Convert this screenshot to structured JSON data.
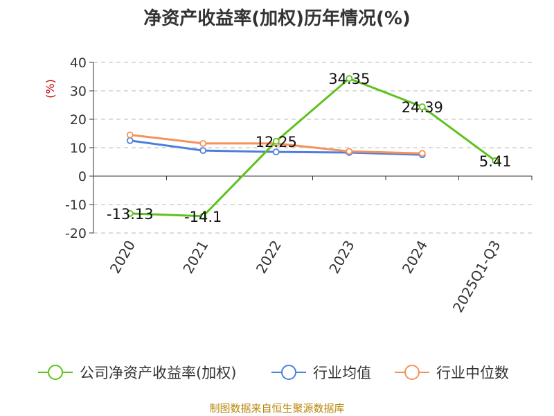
{
  "chart_data": {
    "type": "line",
    "title": "净资产收益率(加权)历年情况(%)",
    "ylabel": "(%)",
    "categories": [
      "2020",
      "2021",
      "2022",
      "2023",
      "2024",
      "2025Q1-Q3"
    ],
    "yticks": [
      "40",
      "30",
      "20",
      "10",
      "0",
      "-10",
      "-20"
    ],
    "ylim": [
      -20,
      40
    ],
    "grid": true,
    "legend": "bottom",
    "series": [
      {
        "name": "公司净资产收益率(加权)",
        "color": "#5ec21e",
        "values": [
          -13.13,
          -14.1,
          12.25,
          34.35,
          24.39,
          5.41
        ],
        "labels": [
          "-13.13",
          "-14.1",
          "12.25",
          "34.35",
          "24.39",
          "5.41"
        ]
      },
      {
        "name": "行业均值",
        "color": "#4f7fdc",
        "values": [
          12.5,
          9.0,
          8.5,
          8.3,
          7.5,
          null
        ]
      },
      {
        "name": "行业中位数",
        "color": "#f5915b",
        "values": [
          14.5,
          11.5,
          11.5,
          8.7,
          8.0,
          null
        ]
      }
    ]
  },
  "source": "制图数据来自恒生聚源数据库"
}
